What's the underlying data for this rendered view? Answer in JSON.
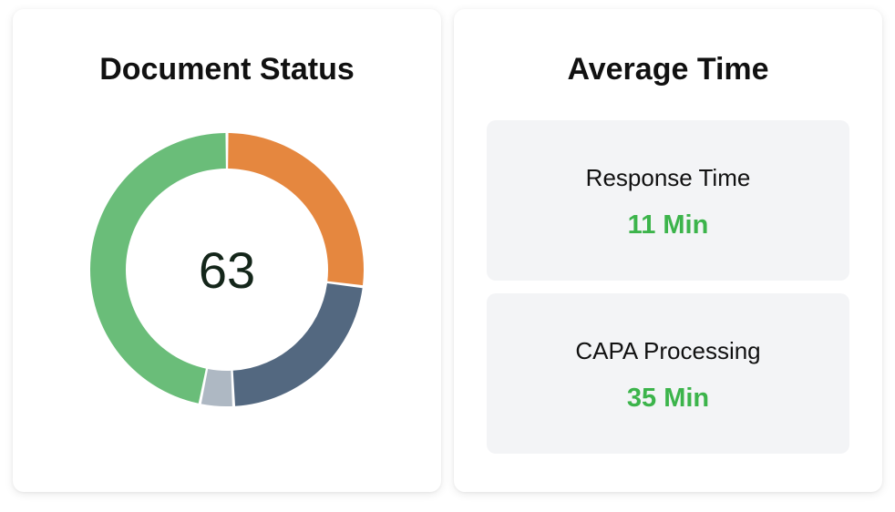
{
  "document_status": {
    "title": "Document Status",
    "total": "63",
    "segments": [
      {
        "name": "orange",
        "value": 17,
        "color": "#e5873f"
      },
      {
        "name": "slate",
        "value": 14,
        "color": "#536880"
      },
      {
        "name": "gray",
        "value": 2.5,
        "color": "#aeb8c3"
      },
      {
        "name": "green",
        "value": 29.5,
        "color": "#6abd79"
      }
    ]
  },
  "average_time": {
    "title": "Average Time",
    "items": [
      {
        "label": "Response Time",
        "value": "11 Min"
      },
      {
        "label": "CAPA Processing",
        "value": "35 Min"
      }
    ]
  },
  "colors": {
    "accent_green": "#3cb44b"
  }
}
